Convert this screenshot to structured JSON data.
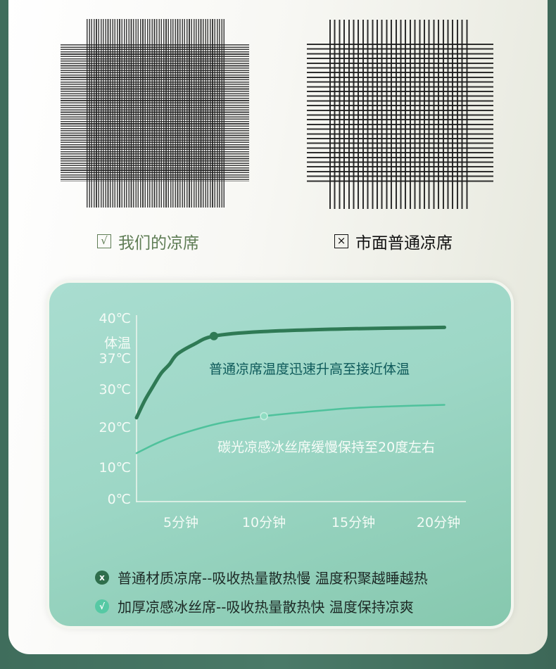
{
  "comparison": {
    "ours_label": "我们的凉席",
    "ours_icon": "check-box-icon",
    "ours_mark": "√",
    "market_label": "市面普通凉席",
    "market_icon": "x-box-icon",
    "market_mark": "×"
  },
  "chart_data": {
    "type": "line",
    "y_ticks": [
      {
        "value": 40,
        "label": "40℃"
      },
      {
        "value": 38.5,
        "label": "体温"
      },
      {
        "value": 37,
        "label": "37℃"
      },
      {
        "value": 30,
        "label": "30℃"
      },
      {
        "value": 20,
        "label": "20℃"
      },
      {
        "value": 10,
        "label": "10℃"
      },
      {
        "value": 0,
        "label": "0℃"
      }
    ],
    "x_ticks": [
      {
        "value": 5,
        "label": "5分钟"
      },
      {
        "value": 10,
        "label": "10分钟"
      },
      {
        "value": 15,
        "label": "15分钟"
      },
      {
        "value": 20,
        "label": "20分钟"
      }
    ],
    "ylim": [
      0,
      40
    ],
    "xlim": [
      0,
      21
    ],
    "grid": false,
    "series": [
      {
        "label": "普通凉席温度迅速升高至接近体温",
        "color": "#2f7a55",
        "x": [
          0,
          1,
          2,
          3,
          4,
          5,
          6,
          7.2,
          10,
          15,
          20.5
        ],
        "y": [
          23,
          27.5,
          31,
          34,
          36,
          37.5,
          38.3,
          38.9,
          39.2,
          39.4,
          39.5
        ],
        "marker_index": 7
      },
      {
        "label": "碳光凉感冰丝席缓慢保持至20度左右",
        "color": "#4fc29c",
        "x": [
          0,
          2.5,
          5,
          7.5,
          10.2,
          12.5,
          15,
          17.5,
          20.5
        ],
        "y": [
          14,
          16.5,
          18.5,
          21.5,
          23.4,
          24.5,
          25.5,
          26,
          26.4
        ],
        "marker_index": 4
      }
    ]
  },
  "legend": [
    {
      "icon": "x-circle-icon",
      "mark": "x",
      "text": "普通材质凉席--吸收热量散热慢 温度积聚越睡越热",
      "color": "#2f6e4c"
    },
    {
      "icon": "check-circle-icon",
      "mark": "√",
      "text": "加厚凉感冰丝席--吸收热量散热快 温度保持凉爽",
      "color": "#56c9a4"
    }
  ]
}
